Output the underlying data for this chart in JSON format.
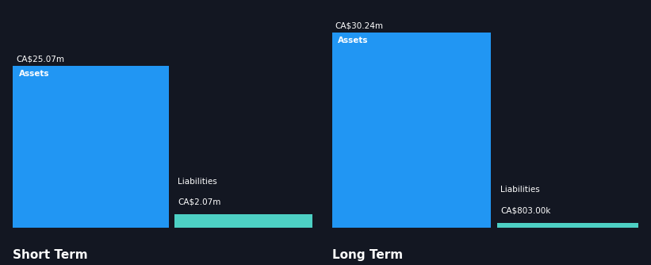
{
  "background_color": "#131722",
  "bar_color_assets": "#2196F3",
  "bar_color_liabilities": "#4DD0C4",
  "text_color": "#ffffff",
  "short_term": {
    "assets_value": 25.07,
    "liabilities_value": 2.07,
    "assets_label": "Assets",
    "liabilities_label": "Liabilities",
    "assets_annotation": "CA$25.07m",
    "liabilities_annotation": "CA$2.07m",
    "title": "Short Term"
  },
  "long_term": {
    "assets_value": 30.24,
    "liabilities_value": 0.803,
    "assets_label": "Assets",
    "liabilities_label": "Liabilities",
    "assets_annotation": "CA$30.24m",
    "liabilities_annotation": "CA$803.00k",
    "title": "Long Term"
  },
  "max_value": 32.0,
  "figsize": [
    8.21,
    3.34
  ],
  "dpi": 100
}
